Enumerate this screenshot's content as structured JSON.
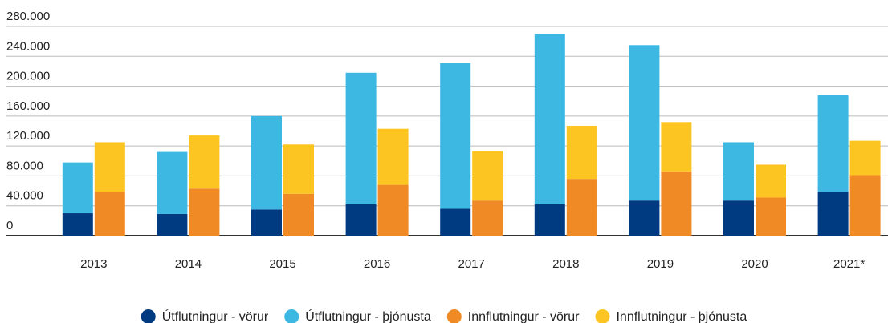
{
  "chart_data": {
    "type": "bar",
    "categories": [
      "2013",
      "2014",
      "2015",
      "2016",
      "2017",
      "2018",
      "2019",
      "2020",
      "2021*"
    ],
    "series": [
      {
        "name": "Útflutningur - vörur",
        "color": "#003a80",
        "values": [
          30000,
          29000,
          35000,
          42000,
          36000,
          42000,
          47000,
          47000,
          59000
        ]
      },
      {
        "name": "Útflutningur - þjónusta",
        "color": "#3db8e3",
        "values": [
          68000,
          83000,
          125000,
          176000,
          195000,
          228000,
          208000,
          78000,
          129000
        ]
      },
      {
        "name": "Innflutningur - vörur",
        "color": "#f08a24",
        "values": [
          59000,
          63000,
          56000,
          68000,
          47000,
          76000,
          86000,
          51000,
          81000
        ]
      },
      {
        "name": "Innflutningur - þjónusta",
        "color": "#fdc521",
        "values": [
          66000,
          71000,
          66000,
          75000,
          66000,
          71000,
          66000,
          44000,
          46000
        ]
      }
    ],
    "ylim": [
      0,
      280000
    ],
    "yticks": [
      0,
      {
        "value": 40000,
        "label": "40.000"
      },
      {
        "value": 80000,
        "label": "80.000"
      },
      {
        "value": 120000,
        "label": "120.000"
      },
      {
        "value": 160000,
        "label": "160.000"
      },
      {
        "value": 200000,
        "label": "200.000"
      },
      {
        "value": 240000,
        "label": "240.000"
      },
      {
        "value": 280000,
        "label": "280.000"
      }
    ],
    "grid": true,
    "legend": "bottom"
  }
}
